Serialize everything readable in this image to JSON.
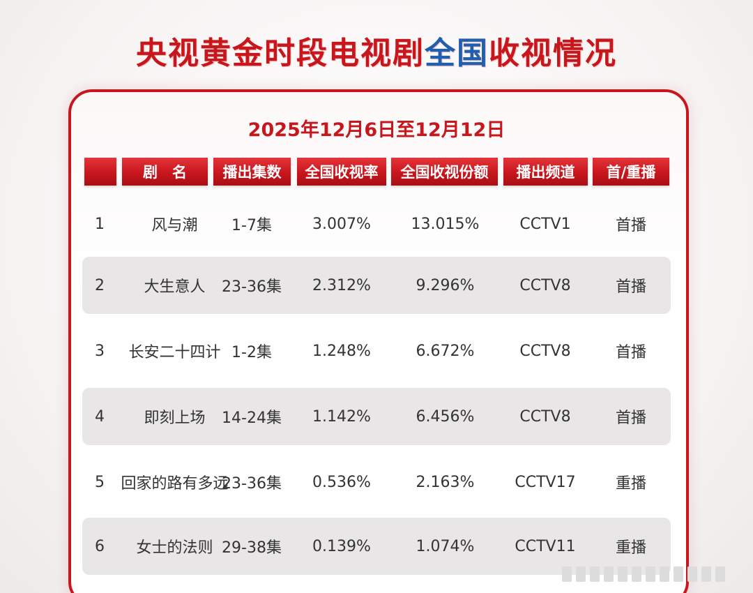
{
  "title": {
    "part1": "央视黄金时段电视剧",
    "part2": "全国",
    "part3": "收视情况"
  },
  "date_range": "2025年12月6日至12月12日",
  "columns": [
    "",
    "剧　名",
    "播出集数",
    "全国收视率",
    "全国收视份额",
    "播出频道",
    "首/重播"
  ],
  "rows": [
    {
      "rank": "1",
      "name": "风与潮",
      "episodes": "1-7集",
      "rating": "3.007%",
      "share": "13.015%",
      "channel": "CCTV1",
      "type": "首播"
    },
    {
      "rank": "2",
      "name": "大生意人",
      "episodes": "23-36集",
      "rating": "2.312%",
      "share": "9.296%",
      "channel": "CCTV8",
      "type": "首播"
    },
    {
      "rank": "3",
      "name": "长安二十四计",
      "episodes": "1-2集",
      "rating": "1.248%",
      "share": "6.672%",
      "channel": "CCTV8",
      "type": "首播"
    },
    {
      "rank": "4",
      "name": "即刻上场",
      "episodes": "14-24集",
      "rating": "1.142%",
      "share": "6.456%",
      "channel": "CCTV8",
      "type": "首播"
    },
    {
      "rank": "5",
      "name": "回家的路有多远",
      "episodes": "23-36集",
      "rating": "0.536%",
      "share": "2.163%",
      "channel": "CCTV17",
      "type": "重播"
    },
    {
      "rank": "6",
      "name": "女士的法则",
      "episodes": "29-38集",
      "rating": "0.139%",
      "share": "1.074%",
      "channel": "CCTV11",
      "type": "重播"
    }
  ],
  "colors": {
    "accent_red": "#c8161d",
    "accent_blue": "#1f5fae"
  }
}
